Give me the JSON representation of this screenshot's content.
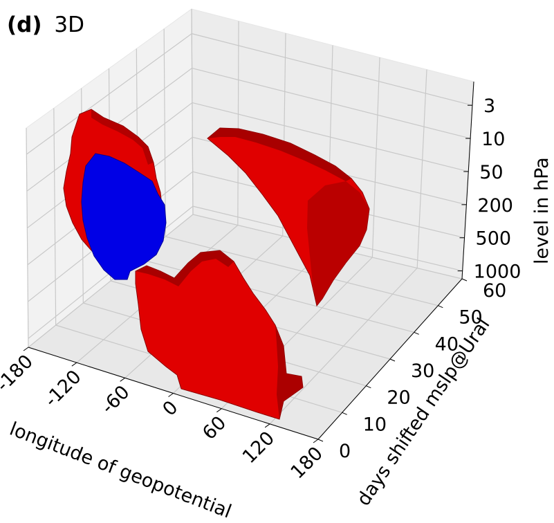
{
  "chart_data": {
    "type": "voxel",
    "panel_label": "(d)",
    "title": "3D",
    "x_axis": {
      "label": "longitude of geopotential",
      "ticks": [
        "-180",
        "-120",
        "-60",
        "0",
        "60",
        "120",
        "180"
      ],
      "range": [
        -180,
        180
      ]
    },
    "y_axis": {
      "label": "days shifted mslp@Ural",
      "ticks": [
        "0",
        "10",
        "20",
        "30",
        "40",
        "50",
        "60"
      ],
      "range": [
        0,
        60
      ]
    },
    "z_axis": {
      "label": "level in hPa",
      "ticks": [
        "3",
        "10",
        "50",
        "200",
        "500",
        "1000"
      ],
      "scale": "log (inverted)"
    },
    "grid": true,
    "colors": {
      "positive_region": "#e00000",
      "positive_region_dark": "#9e0000",
      "negative_region": "#0000e6",
      "pane": "#f2f2f2",
      "grid": "#c8c8c8"
    },
    "regions": [
      {
        "sign": "positive",
        "color": "red",
        "longitude_range": [
          -180,
          -90
        ],
        "days_range": [
          40,
          60
        ],
        "level_range_hPa": [
          1000,
          3
        ]
      },
      {
        "sign": "negative",
        "color": "blue",
        "longitude_range": [
          -170,
          -100
        ],
        "days_range": [
          40,
          60
        ],
        "level_range_hPa": [
          1000,
          10
        ]
      },
      {
        "sign": "positive",
        "color": "red",
        "longitude_range": [
          0,
          180
        ],
        "days_range": [
          30,
          60
        ],
        "level_range_hPa": [
          1000,
          3
        ]
      },
      {
        "sign": "positive",
        "color": "red",
        "longitude_range": [
          -60,
          120
        ],
        "days_range": [
          0,
          20
        ],
        "level_range_hPa": [
          1000,
          200
        ]
      }
    ]
  }
}
